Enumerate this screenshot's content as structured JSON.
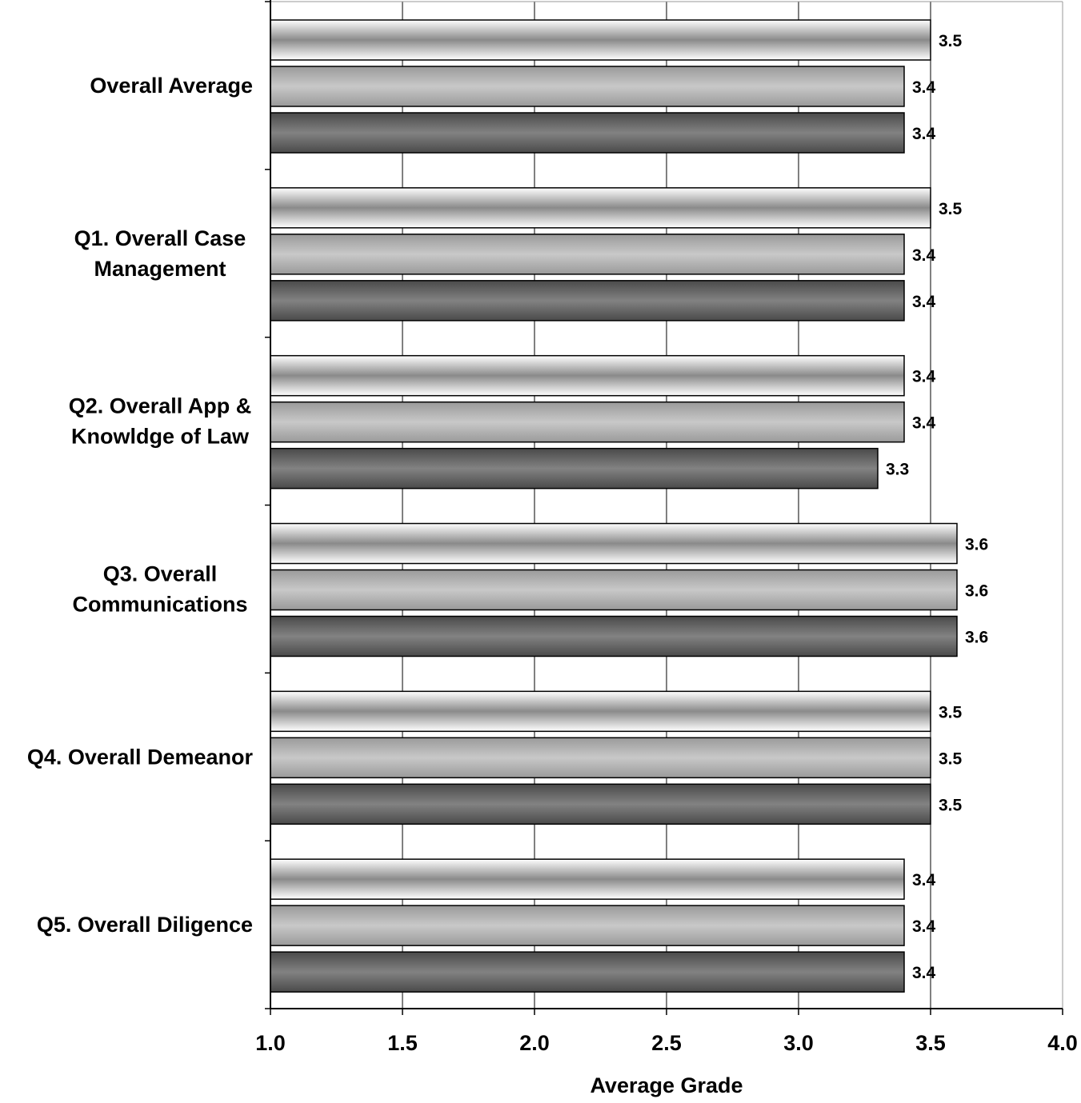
{
  "chart_data": {
    "type": "bar",
    "orientation": "horizontal",
    "categories": [
      [
        "Overall Average"
      ],
      [
        "Q1. Overall Case",
        "Management"
      ],
      [
        "Q2. Overall App &",
        "Knowldge of Law"
      ],
      [
        "Q3. Overall",
        "Communications"
      ],
      [
        "Q4. Overall Demeanor"
      ],
      [
        "Q5. Overall Diligence"
      ]
    ],
    "series": [
      {
        "values": [
          3.5,
          3.5,
          3.4,
          3.6,
          3.5,
          3.4
        ],
        "labels": [
          "3.5",
          "3.5",
          "3.4",
          "3.6",
          "3.5",
          "3.4"
        ]
      },
      {
        "values": [
          3.4,
          3.4,
          3.4,
          3.6,
          3.5,
          3.4
        ],
        "labels": [
          "3.4",
          "3.4",
          "3.4",
          "3.6",
          "3.5",
          "3.4"
        ]
      },
      {
        "values": [
          3.4,
          3.4,
          3.3,
          3.6,
          3.5,
          3.4
        ],
        "labels": [
          "3.4",
          "3.4",
          "3.3",
          "3.6",
          "3.5",
          "3.4"
        ]
      }
    ],
    "xlabel": "Average Grade",
    "xlim": [
      1.0,
      4.0
    ],
    "xticks": [
      "1.0",
      "1.5",
      "2.0",
      "2.5",
      "3.0",
      "3.5",
      "4.0"
    ],
    "grid": "vertical",
    "legend": "none"
  }
}
